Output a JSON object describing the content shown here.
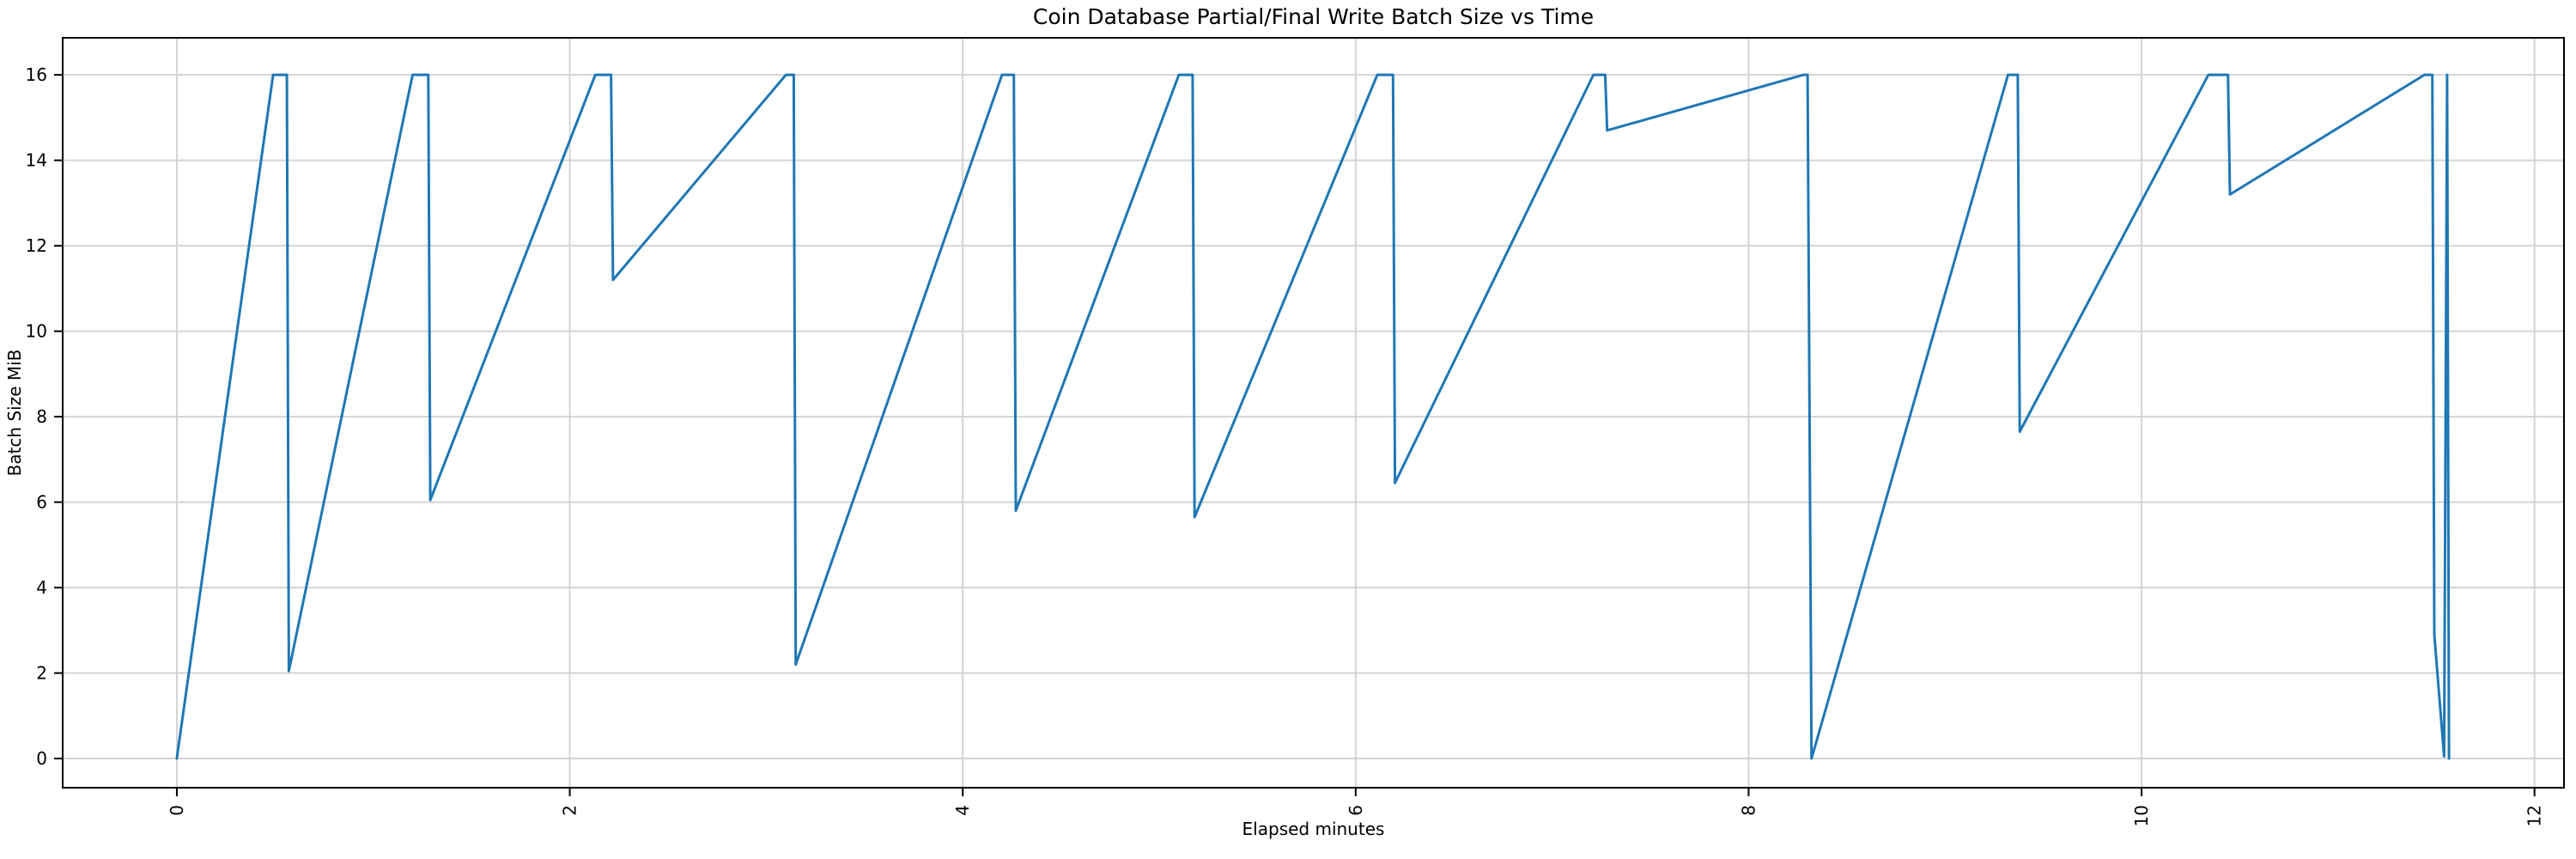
{
  "title": "Coin Database Partial/Final Write Batch Size vs Time",
  "colors": {
    "line": "#1f77b4",
    "grid": "#d4d4d4",
    "spine": "#000000",
    "tick": "#000000",
    "text": "#000000",
    "background": "#ffffff"
  },
  "chart_data": {
    "type": "line",
    "title": "Coin Database Partial/Final Write Batch Size vs Time",
    "xlabel": "Elapsed minutes",
    "ylabel": "Batch Size MiB",
    "xlim": [
      -0.581,
      12.15
    ],
    "ylim": [
      -0.683,
      16.867
    ],
    "xticks": [
      0,
      2,
      4,
      6,
      8,
      10,
      12
    ],
    "yticks": [
      0,
      2,
      4,
      6,
      8,
      10,
      12,
      14,
      16
    ],
    "xtick_labels": [
      "0",
      "2",
      "4",
      "6",
      "8",
      "10",
      "12"
    ],
    "ytick_labels": [
      "0",
      "2",
      "4",
      "6",
      "8",
      "10",
      "12",
      "14",
      "16"
    ],
    "grid": true,
    "legend": false,
    "series": [
      {
        "name": "batch-size-mib",
        "color": "#1f77b4",
        "points": [
          [
            0.0,
            0.0
          ],
          [
            0.49,
            16.0
          ],
          [
            0.56,
            16.0
          ],
          [
            0.57,
            2.05
          ],
          [
            1.2,
            16.0
          ],
          [
            1.28,
            16.0
          ],
          [
            1.29,
            6.05
          ],
          [
            2.13,
            16.0
          ],
          [
            2.21,
            16.0
          ],
          [
            2.22,
            11.2
          ],
          [
            3.1,
            16.0
          ],
          [
            3.14,
            16.0
          ],
          [
            3.15,
            2.2
          ],
          [
            4.2,
            16.0
          ],
          [
            4.26,
            16.0
          ],
          [
            4.27,
            5.8
          ],
          [
            5.1,
            16.0
          ],
          [
            5.17,
            16.0
          ],
          [
            5.18,
            5.65
          ],
          [
            6.11,
            16.0
          ],
          [
            6.19,
            16.0
          ],
          [
            6.2,
            6.45
          ],
          [
            7.21,
            16.0
          ],
          [
            7.27,
            16.0
          ],
          [
            7.28,
            14.7
          ],
          [
            8.28,
            16.0
          ],
          [
            8.3,
            16.0
          ],
          [
            8.32,
            0.0
          ],
          [
            9.32,
            16.0
          ],
          [
            9.37,
            16.0
          ],
          [
            9.38,
            7.65
          ],
          [
            10.34,
            16.0
          ],
          [
            10.44,
            16.0
          ],
          [
            10.45,
            13.2
          ],
          [
            11.44,
            16.0
          ],
          [
            11.48,
            16.0
          ],
          [
            11.49,
            2.9
          ],
          [
            11.54,
            0.05
          ],
          [
            11.555,
            16.0
          ],
          [
            11.565,
            0.0
          ]
        ]
      }
    ]
  }
}
